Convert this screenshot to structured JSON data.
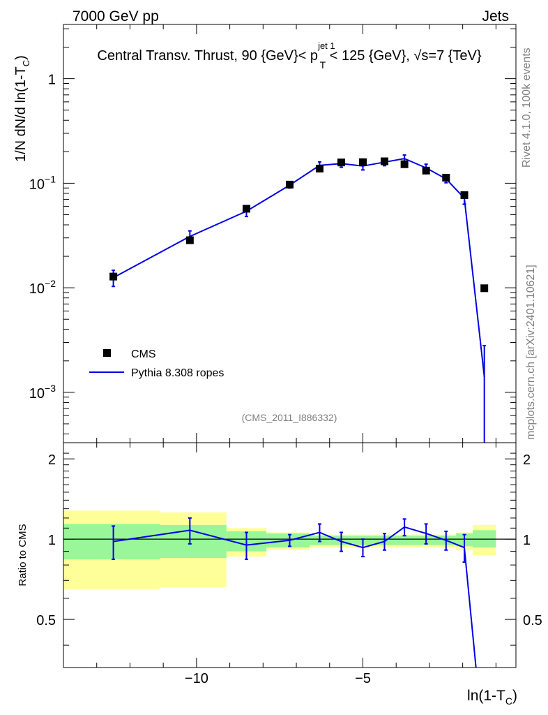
{
  "header": {
    "left": "7000 GeV pp",
    "right": "Jets"
  },
  "title": {
    "main": "Central Transv. Thrust, 90 {GeV}< p",
    "sup": "jet 1",
    "sub": "T",
    "rest": " < 125 {GeV}, √s=7 {TeV}"
  },
  "side_labels": {
    "rivet": "Rivet 4.1.0,  100k events",
    "mcplots": "mcplots.cern.ch [arXiv:2401.10621]"
  },
  "analysis_id": "(CMS_2011_I886332)",
  "colors": {
    "mc": "#0000e6",
    "band_inner": "#99f699",
    "band_outer": "#ffff99",
    "data": "#000000"
  },
  "chart_data": {
    "type": "scatter",
    "title": "Central Transv. Thrust, 90 {GeV}< p_T^{jet 1} < 125 {GeV}, sqrt(s)=7 {TeV}",
    "xlabel": "ln(1-T_C)",
    "ylabel_parts": {
      "prefix": "1/N    dN/d ln(1-T",
      "sub": "C",
      "suffix": ")"
    },
    "ylabel": "1/N dN/d ln(1-T_C)",
    "ratio_ylabel": "Ratio to CMS",
    "xlim": [
      -14.0,
      -0.4
    ],
    "ylim": [
      0.00033,
      3.3
    ],
    "yscale": "log",
    "ratio_ylim": [
      0.33,
      2.3
    ],
    "x_ticks": [
      -10,
      -5
    ],
    "x_tick_labels": [
      "−10",
      "−5"
    ],
    "y_ticks": [
      0.001,
      0.01,
      0.1,
      1
    ],
    "y_tick_labels": [
      {
        "base": "10",
        "exp": "−3"
      },
      {
        "base": "10",
        "exp": "−2"
      },
      {
        "base": "10",
        "exp": "−1"
      },
      {
        "base": "1",
        "exp": ""
      }
    ],
    "ratio_ticks": [
      0.5,
      1,
      2
    ],
    "ratio_tick_labels": [
      "0.5",
      "1",
      "2"
    ],
    "legend": {
      "position": "lower-left",
      "entries": [
        {
          "label": "CMS",
          "style": "marker"
        },
        {
          "label": "Pythia 8.308 ropes",
          "style": "line"
        }
      ]
    },
    "series": [
      {
        "name": "CMS",
        "x": [
          -12.5,
          -10.2,
          -8.5,
          -7.2,
          -6.3,
          -5.65,
          -5.0,
          -4.35,
          -3.75,
          -3.1,
          -2.5,
          -1.95,
          -1.35
        ],
        "y": [
          0.0128,
          0.0285,
          0.057,
          0.097,
          0.138,
          0.158,
          0.159,
          0.162,
          0.152,
          0.132,
          0.113,
          0.077,
          0.0099
        ],
        "xerr": [
          [
            -14.0,
            -11.1
          ],
          [
            -11.1,
            -9.1
          ],
          [
            -9.1,
            -7.9
          ],
          [
            -7.9,
            -6.6
          ],
          [
            -6.6,
            -6.0
          ],
          [
            -6.0,
            -5.3
          ],
          [
            -5.3,
            -4.7
          ],
          [
            -4.7,
            -4.0
          ],
          [
            -4.0,
            -3.4
          ],
          [
            -3.4,
            -2.8
          ],
          [
            -2.8,
            -2.2
          ],
          [
            -2.2,
            -1.7
          ],
          [
            -1.7,
            -1.0
          ]
        ]
      },
      {
        "name": "Pythia 8.308 ropes",
        "x": [
          -12.5,
          -10.2,
          -8.5,
          -7.2,
          -6.3,
          -5.65,
          -5.0,
          -4.35,
          -3.75,
          -3.1,
          -2.5,
          -1.95,
          -1.35
        ],
        "y": [
          0.0125,
          0.031,
          0.054,
          0.096,
          0.148,
          0.154,
          0.146,
          0.159,
          0.172,
          0.14,
          0.11,
          0.072,
          0.0014
        ],
        "yerr": [
          0.0022,
          0.004,
          0.006,
          0.006,
          0.012,
          0.012,
          0.012,
          0.012,
          0.014,
          0.012,
          0.009,
          0.009,
          0.0014
        ]
      }
    ],
    "ratio": {
      "x": [
        -12.5,
        -10.2,
        -8.5,
        -7.2,
        -6.3,
        -5.65,
        -5.0,
        -4.35,
        -3.75,
        -3.1,
        -2.5,
        -1.95,
        -1.6
      ],
      "y": [
        0.98,
        1.08,
        0.95,
        0.99,
        1.06,
        0.98,
        0.93,
        0.98,
        1.11,
        1.05,
        0.99,
        0.93,
        0.33
      ],
      "yerr": [
        0.14,
        0.12,
        0.11,
        0.05,
        0.08,
        0.08,
        0.07,
        0.07,
        0.08,
        0.09,
        0.08,
        0.11,
        0.05
      ],
      "band_inner": [
        [
          0.84,
          1.14
        ],
        [
          0.85,
          1.13
        ],
        [
          0.9,
          1.07
        ],
        [
          0.93,
          1.05
        ],
        [
          0.95,
          1.03
        ],
        [
          0.95,
          1.03
        ],
        [
          0.95,
          1.03
        ],
        [
          0.95,
          1.03
        ],
        [
          0.95,
          1.03
        ],
        [
          0.95,
          1.03
        ],
        [
          0.95,
          1.03
        ],
        [
          0.94,
          1.05
        ],
        [
          0.93,
          1.08
        ]
      ],
      "band_outer": [
        [
          0.65,
          1.28
        ],
        [
          0.66,
          1.26
        ],
        [
          0.86,
          1.1
        ],
        [
          0.91,
          1.06
        ],
        [
          0.93,
          1.04
        ],
        [
          0.93,
          1.04
        ],
        [
          0.93,
          1.04
        ],
        [
          0.93,
          1.04
        ],
        [
          0.93,
          1.04
        ],
        [
          0.93,
          1.04
        ],
        [
          0.93,
          1.04
        ],
        [
          0.91,
          1.06
        ],
        [
          0.87,
          1.13
        ]
      ]
    }
  }
}
